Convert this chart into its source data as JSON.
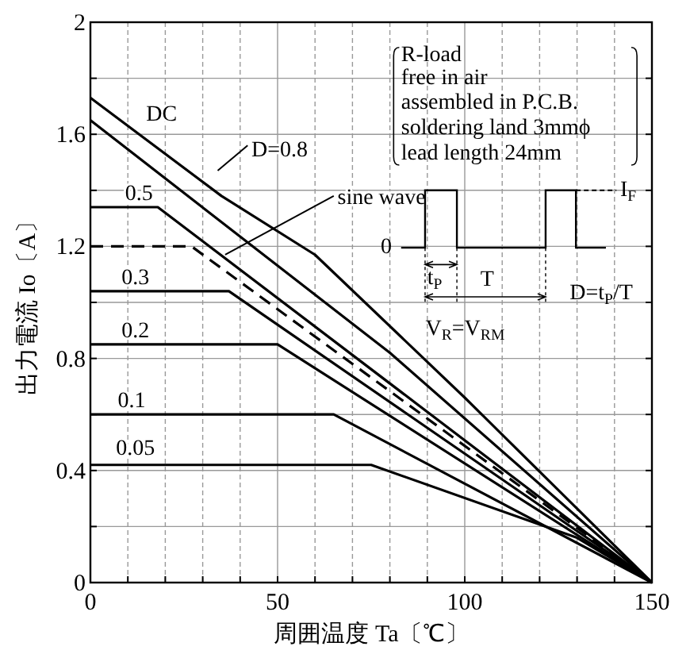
{
  "chart_data": {
    "type": "line",
    "xlabel": "周囲温度 Ta〔℃〕",
    "ylabel": "出力電流 Io〔A〕",
    "xlim": [
      0,
      150
    ],
    "ylim": [
      0,
      2
    ],
    "xticks": [
      0,
      {
        "value": 10,
        "label": null
      },
      {
        "value": 20,
        "label": null
      },
      {
        "value": 30,
        "label": null
      },
      {
        "value": 40,
        "label": null
      },
      50,
      {
        "value": 60,
        "label": null
      },
      {
        "value": 70,
        "label": null
      },
      {
        "value": 80,
        "label": null
      },
      {
        "value": 90,
        "label": null
      },
      100,
      {
        "value": 110,
        "label": null
      },
      {
        "value": 120,
        "label": null
      },
      {
        "value": 130,
        "label": null
      },
      {
        "value": 140,
        "label": null
      },
      150
    ],
    "yticks": [
      0,
      {
        "value": 0.2,
        "label": null
      },
      0.4,
      {
        "value": 0.6,
        "label": null
      },
      0.8,
      {
        "value": 1.0,
        "label": null
      },
      1.2,
      {
        "value": 1.4,
        "label": null
      },
      1.6,
      {
        "value": 1.8,
        "label": null
      },
      2
    ],
    "grid": true,
    "series": [
      {
        "name": "DC",
        "color": "#000000",
        "x": [
          0,
          35,
          60,
          100,
          150
        ],
        "values": [
          1.73,
          1.38,
          1.17,
          0.66,
          0
        ]
      },
      {
        "name": "D=0.8",
        "color": "#000000",
        "x": [
          0,
          80,
          150
        ],
        "values": [
          1.65,
          0.82,
          0
        ]
      },
      {
        "name": "0.5",
        "color": "#000000",
        "x": [
          0,
          18,
          150
        ],
        "values": [
          1.34,
          1.34,
          0
        ]
      },
      {
        "name": "sine wave",
        "color": "#000000",
        "line_style": "dashed",
        "x": [
          0,
          27,
          150
        ],
        "values": [
          1.2,
          1.2,
          0
        ]
      },
      {
        "name": "0.3",
        "color": "#000000",
        "x": [
          0,
          37,
          150
        ],
        "values": [
          1.04,
          1.04,
          0
        ]
      },
      {
        "name": "0.2",
        "color": "#000000",
        "x": [
          0,
          50,
          150
        ],
        "values": [
          0.85,
          0.85,
          0
        ]
      },
      {
        "name": "0.1",
        "color": "#000000",
        "x": [
          0,
          65,
          150
        ],
        "values": [
          0.6,
          0.6,
          0
        ]
      },
      {
        "name": "0.05",
        "color": "#000000",
        "x": [
          0,
          75,
          130,
          150
        ],
        "values": [
          0.42,
          0.42,
          0.16,
          0
        ]
      }
    ],
    "annotations": [
      "R-load",
      "free in air",
      "assembled in P.C.B.",
      "soldering land 3mmϕ",
      "lead length 24mm",
      "I$_{F}$",
      "0",
      "t$_{P}$",
      "T",
      "D=t$_{P}$/T",
      "V$_{R}$=V$_{RM}$"
    ]
  }
}
